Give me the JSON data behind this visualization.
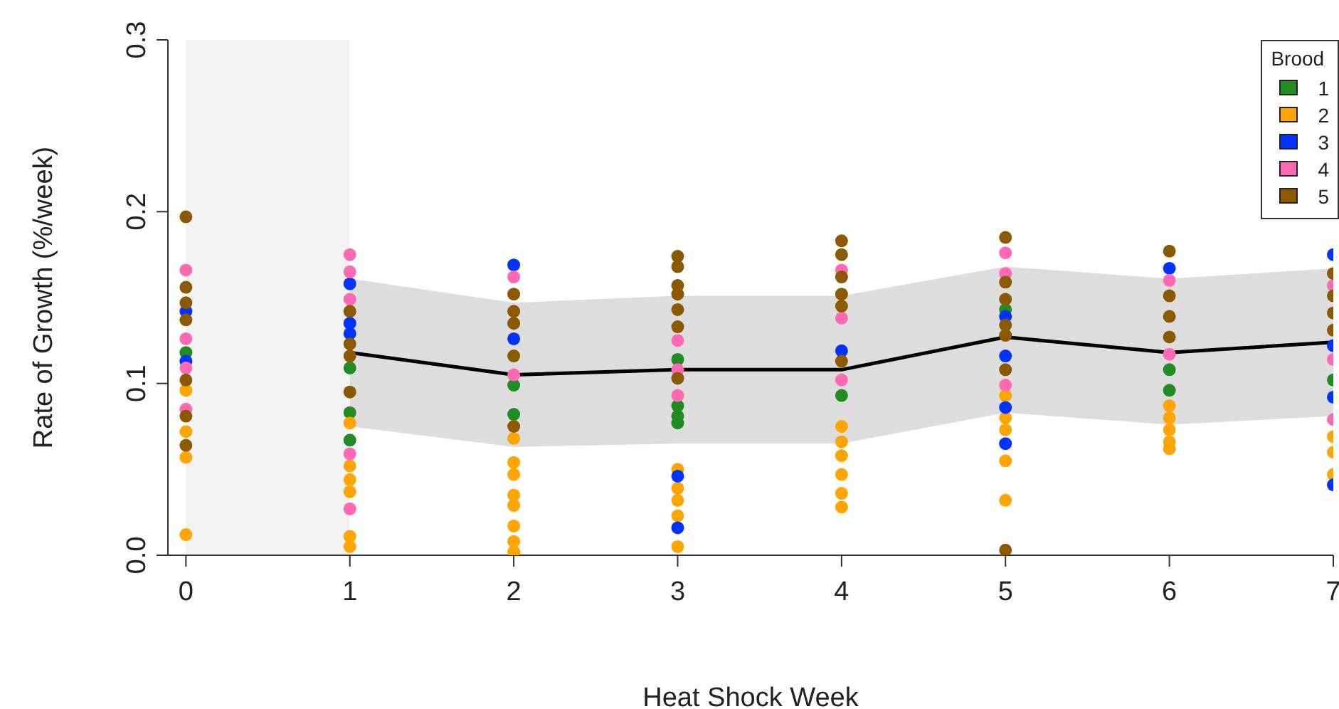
{
  "chart_data": {
    "type": "scatter",
    "xlabel": "Heat Shock Week",
    "ylabel": "Rate of Growth (%/week)",
    "legend_title": "Brood",
    "legend": "top right",
    "marker": "circle",
    "grid": false,
    "xlim": [
      -0.11,
      7
    ],
    "xticks": [
      0,
      1,
      2,
      3,
      4,
      5,
      6,
      7
    ],
    "ylim": [
      0,
      0.3
    ],
    "yticks": [
      {
        "value": 0,
        "label": "0.0"
      },
      {
        "value": 0.1,
        "label": "0.1"
      },
      {
        "value": 0.2,
        "label": "0.2"
      },
      {
        "value": 0.3,
        "label": "0.3"
      }
    ],
    "bands": [
      {
        "axis": "x",
        "from": 0,
        "to": 1,
        "color": "#f2f2f2"
      }
    ],
    "series": [
      {
        "name": "1",
        "color": "#228b22",
        "x": [
          0,
          1,
          1,
          1,
          2,
          2,
          3,
          3,
          3,
          3,
          4,
          5,
          6,
          6,
          7
        ],
        "values": [
          0.118,
          0.109,
          0.083,
          0.067,
          0.099,
          0.082,
          0.114,
          0.087,
          0.081,
          0.077,
          0.093,
          0.143,
          0.108,
          0.096,
          0.102
        ]
      },
      {
        "name": "2",
        "color": "#ffa500",
        "x": [
          0,
          0,
          0,
          0,
          1,
          1,
          1,
          1,
          1,
          1,
          2,
          2,
          2,
          2,
          2,
          2,
          2,
          2,
          3,
          3,
          3,
          3,
          3,
          4,
          4,
          4,
          4,
          4,
          4,
          5,
          5,
          5,
          5,
          5,
          6,
          6,
          6,
          6,
          6,
          7,
          7,
          7
        ],
        "values": [
          0.096,
          0.072,
          0.057,
          0.012,
          0.077,
          0.052,
          0.044,
          0.037,
          0.011,
          0.005,
          0.068,
          0.054,
          0.047,
          0.035,
          0.029,
          0.017,
          0.008,
          0.002,
          0.05,
          0.039,
          0.032,
          0.023,
          0.005,
          0.075,
          0.066,
          0.058,
          0.047,
          0.036,
          0.028,
          0.093,
          0.08,
          0.073,
          0.055,
          0.032,
          0.087,
          0.08,
          0.073,
          0.066,
          0.062,
          0.069,
          0.06,
          0.047
        ]
      },
      {
        "name": "3",
        "color": "#0033ff",
        "x": [
          0,
          0,
          1,
          1,
          1,
          2,
          2,
          3,
          3,
          4,
          5,
          5,
          5,
          5,
          6,
          7,
          7,
          7,
          7
        ],
        "values": [
          0.142,
          0.113,
          0.158,
          0.135,
          0.129,
          0.169,
          0.126,
          0.046,
          0.016,
          0.119,
          0.139,
          0.116,
          0.086,
          0.065,
          0.167,
          0.175,
          0.122,
          0.092,
          0.041
        ]
      },
      {
        "name": "4",
        "color": "#ff69b4",
        "x": [
          0,
          0,
          0,
          0,
          1,
          1,
          1,
          1,
          1,
          2,
          2,
          3,
          3,
          3,
          4,
          4,
          4,
          5,
          5,
          5,
          6,
          6,
          7,
          7,
          7
        ],
        "values": [
          0.166,
          0.126,
          0.109,
          0.085,
          0.175,
          0.165,
          0.149,
          0.059,
          0.027,
          0.162,
          0.105,
          0.125,
          0.108,
          0.093,
          0.166,
          0.138,
          0.102,
          0.176,
          0.164,
          0.099,
          0.16,
          0.117,
          0.157,
          0.114,
          0.079
        ]
      },
      {
        "name": "5",
        "color": "#8b5a00",
        "x": [
          0,
          0,
          0,
          0,
          0,
          0,
          0,
          1,
          1,
          1,
          1,
          2,
          2,
          2,
          2,
          2,
          3,
          3,
          3,
          3,
          3,
          3,
          3,
          4,
          4,
          4,
          4,
          4,
          4,
          5,
          5,
          5,
          5,
          5,
          5,
          5,
          6,
          6,
          6,
          6,
          7,
          7,
          7,
          7
        ],
        "values": [
          0.197,
          0.156,
          0.147,
          0.137,
          0.102,
          0.081,
          0.064,
          0.142,
          0.123,
          0.116,
          0.095,
          0.152,
          0.142,
          0.135,
          0.116,
          0.075,
          0.174,
          0.168,
          0.157,
          0.152,
          0.143,
          0.133,
          0.103,
          0.183,
          0.175,
          0.162,
          0.152,
          0.145,
          0.113,
          0.185,
          0.159,
          0.149,
          0.134,
          0.128,
          0.108,
          0.003,
          0.177,
          0.151,
          0.139,
          0.127,
          0.164,
          0.151,
          0.141,
          0.131
        ]
      },
      {
        "type": "line",
        "color": "#000000",
        "marker": "none",
        "x": [
          1,
          2,
          3,
          4,
          5,
          6,
          7
        ],
        "values": [
          0.118,
          0.105,
          0.108,
          0.108,
          0.127,
          0.118,
          0.124
        ],
        "lower": [
          0.075,
          0.063,
          0.065,
          0.065,
          0.083,
          0.076,
          0.081
        ],
        "upper": [
          0.161,
          0.147,
          0.151,
          0.151,
          0.168,
          0.161,
          0.167
        ]
      }
    ]
  }
}
